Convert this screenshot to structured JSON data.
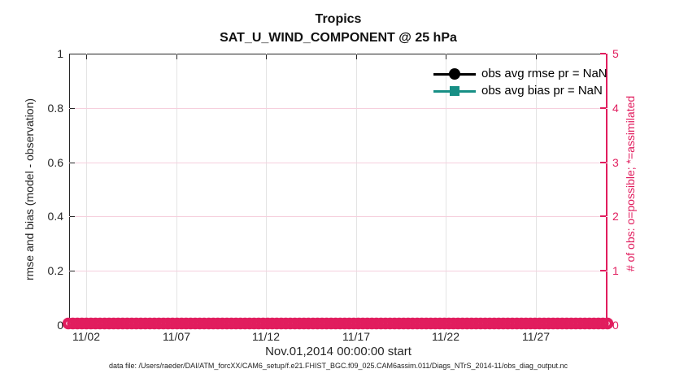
{
  "title": {
    "line1": "Tropics",
    "line2": "SAT_U_WIND_COMPONENT @ 25 hPa"
  },
  "colors": {
    "pink": "#e11d5e",
    "teal": "#178f85",
    "axis": "#262626",
    "grid_vertical": "#e4e4e4",
    "grid_horizontal": "#f6cfdd",
    "rmse_black": "#000000"
  },
  "left_axis": {
    "label": "rmse and bias (model - observation)",
    "tick_labels": [
      "0",
      "0.2",
      "0.4",
      "0.6",
      "0.8",
      "1"
    ]
  },
  "right_axis": {
    "label": "# of obs: o=possible; *=assimilated",
    "tick_labels": [
      "0",
      "1",
      "2",
      "3",
      "4",
      "5"
    ]
  },
  "x_axis": {
    "label": "Nov.01,2014 00:00:00 start",
    "tick_labels": [
      "11/02",
      "11/07",
      "11/12",
      "11/17",
      "11/22",
      "11/27"
    ]
  },
  "legend": {
    "entries": [
      {
        "label": "obs avg rmse pr = NaN",
        "marker": "circle",
        "color": "#000000"
      },
      {
        "label": "obs avg bias pr = NaN",
        "marker": "square",
        "color": "#178f85"
      }
    ]
  },
  "footer": "data file: /Users/raeder/DAI/ATM_forcXX/CAM6_setup/f.e21.FHIST_BGC.f09_025.CAM6assim.011/Diags_NTrS_2014-11/obs_diag_output.nc",
  "chart_data": {
    "type": "line",
    "title": "Tropics",
    "subtitle": "SAT_U_WIND_COMPONENT @ 25 hPa",
    "xlabel": "Nov.01,2014 00:00:00 start",
    "x_range": [
      "2014-11-01 00:00:00",
      "2014-12-01 00:00:00"
    ],
    "x_tick_labels": [
      "11/02",
      "11/07",
      "11/12",
      "11/17",
      "11/22",
      "11/27"
    ],
    "ylabel_left": "rmse and bias (model - observation)",
    "ylim_left": [
      0,
      1
    ],
    "left_tick_labels": [
      "0",
      "0.2",
      "0.4",
      "0.6",
      "0.8",
      "1"
    ],
    "ylabel_right": "# of obs: o=possible; *=assimilated",
    "ylim_right": [
      0,
      5
    ],
    "right_tick_labels": [
      "0",
      "1",
      "2",
      "3",
      "4",
      "5"
    ],
    "grid": true,
    "legend_position": "upper right",
    "series": [
      {
        "name": "obs avg rmse pr = NaN",
        "yaxis": "left",
        "marker": "circle",
        "color": "#000000",
        "values": "NaN - no curve plotted"
      },
      {
        "name": "obs avg bias pr = NaN",
        "yaxis": "left",
        "marker": "square",
        "color": "#178f85",
        "values": "NaN - no curve plotted"
      },
      {
        "name": "# of obs possible (o markers)",
        "yaxis": "right",
        "marker": "o",
        "color": "#e11d5e",
        "n_points": 120,
        "constant_value": 0
      },
      {
        "name": "# of obs assimilated (* markers)",
        "yaxis": "right",
        "marker": "*",
        "color": "#e11d5e",
        "n_points": 120,
        "constant_value": 0
      }
    ]
  }
}
